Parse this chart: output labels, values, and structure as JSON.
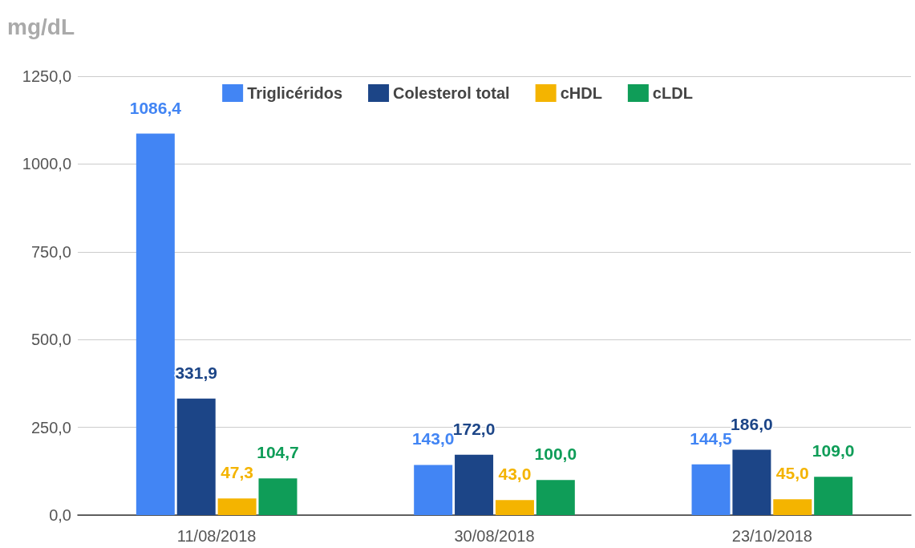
{
  "chart_data": {
    "type": "bar",
    "ylabel": "mg/dL",
    "categories": [
      "11/08/2018",
      "30/08/2018",
      "23/10/2018"
    ],
    "series": [
      {
        "name": "Triglicéridos",
        "color": "#4285f4",
        "values": [
          1086.4,
          143.0,
          144.5
        ],
        "value_labels": [
          "1086,4",
          "143,0",
          "144,5"
        ]
      },
      {
        "name": "Colesterol total",
        "color": "#1c4587",
        "values": [
          331.9,
          172.0,
          186.0
        ],
        "value_labels": [
          "331,9",
          "172,0",
          "186,0"
        ]
      },
      {
        "name": "cHDL",
        "color": "#f4b400",
        "values": [
          47.3,
          43.0,
          45.0
        ],
        "value_labels": [
          "47,3",
          "43,0",
          "45,0"
        ]
      },
      {
        "name": "cLDL",
        "color": "#0f9d58",
        "values": [
          104.7,
          100.0,
          109.0
        ],
        "value_labels": [
          "104,7",
          "100,0",
          "109,0"
        ]
      }
    ],
    "ylim": [
      0,
      1250
    ],
    "yticks": [
      {
        "value": 0,
        "label": "0,0"
      },
      {
        "value": 250,
        "label": "250,0"
      },
      {
        "value": 500,
        "label": "500,0"
      },
      {
        "value": 750,
        "label": "750,0"
      },
      {
        "value": 1000,
        "label": "1000,0"
      },
      {
        "value": 1250,
        "label": "1250,0"
      }
    ],
    "grid": "y",
    "legend": "top"
  }
}
